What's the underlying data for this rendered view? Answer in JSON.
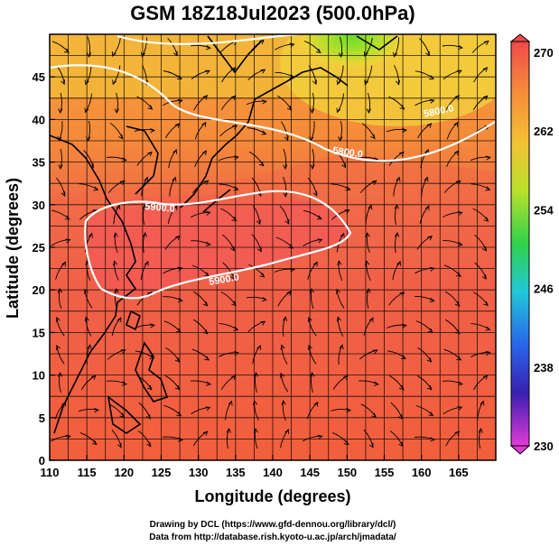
{
  "title": "GSM 18Z18Jul2023 (500.0hPa)",
  "x_axis_label": "Longitude (degrees)",
  "y_axis_label": "Latitude  (degrees)",
  "x_ticks": [
    "110",
    "115",
    "120",
    "125",
    "130",
    "135",
    "140",
    "145",
    "150",
    "155",
    "160",
    "165"
  ],
  "y_ticks": [
    "0",
    "5",
    "10",
    "15",
    "20",
    "25",
    "30",
    "35",
    "40",
    "45"
  ],
  "colorbar_ticks": [
    "270",
    "262",
    "254",
    "246",
    "238",
    "230"
  ],
  "contour_labels": [
    "5800.0",
    "5900.0",
    "5900.0",
    "5800.0"
  ],
  "credits": {
    "line1": "Drawing by DCL (https://www.gfd-dennou.org/library/dcl/)",
    "line2": "Data from http://database.rish.kyoto-u.ac.jp/arch/jmadata/"
  },
  "map": {
    "lon_range": [
      110,
      170
    ],
    "lat_range": [
      0,
      50
    ],
    "colorbar_range": [
      230,
      270
    ],
    "colors": {
      "warm_core": "#f05a50",
      "warm": "#f47a3c",
      "mid": "#f59a3a",
      "cool": "#f2c340",
      "coldest": "#7fe030"
    }
  }
}
